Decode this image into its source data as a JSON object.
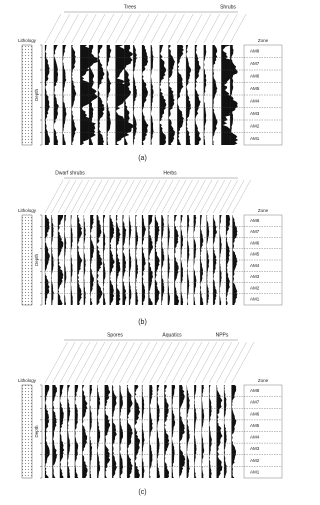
{
  "panels": [
    {
      "caption": "(a)",
      "groups": [
        "Trees",
        "Shrubs"
      ],
      "lithology": "Lithology",
      "depth": "Depth",
      "zone": "Zone",
      "zones": [
        "AM8",
        "AM7",
        "AM6",
        "AM5",
        "AM4",
        "AM3",
        "AM2",
        "AM1"
      ]
    },
    {
      "caption": "(b)",
      "groups": [
        "Dwarf shrubs",
        "Herbs"
      ],
      "lithology": "Lithology",
      "depth": "Depth",
      "zone": "Zone",
      "zones": [
        "AM8",
        "AM7",
        "AM6",
        "AM5",
        "AM4",
        "AM3",
        "AM2",
        "AM1"
      ]
    },
    {
      "caption": "(c)",
      "groups": [
        "Spores",
        "Aquatics",
        "NPPs"
      ],
      "lithology": "Lithology",
      "depth": "Depth",
      "zone": "Zone",
      "zones": [
        "AM8",
        "AM7",
        "AM6",
        "AM5",
        "AM4",
        "AM3",
        "AM2",
        "AM1"
      ]
    }
  ]
}
